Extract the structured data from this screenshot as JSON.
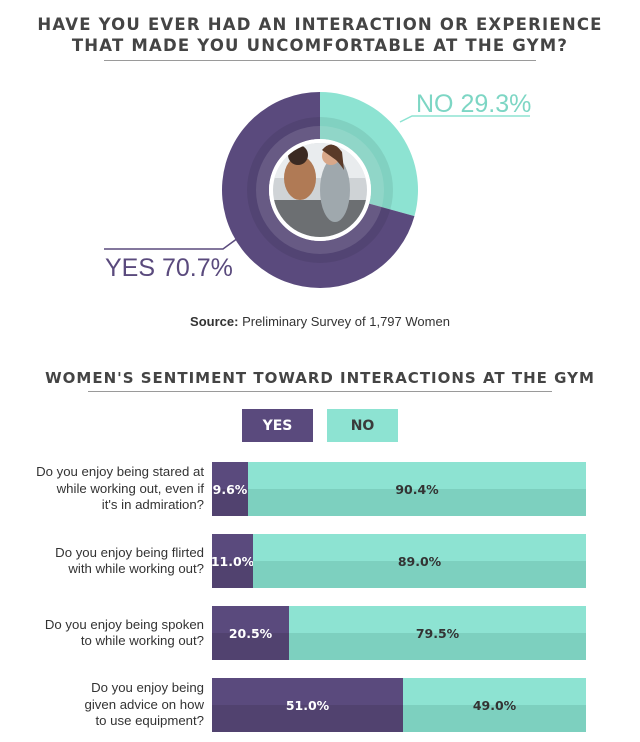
{
  "title": {
    "line1": "HAVE YOU EVER HAD AN INTERACTION OR EXPERIENCE",
    "line2": "THAT MADE YOU UNCOMFORTABLE AT THE GYM?"
  },
  "source": {
    "label": "Source:",
    "text": "Preliminary Survey of 1,797 Women"
  },
  "section2_title": "WOMEN'S SENTIMENT TOWARD INTERACTIONS AT THE GYM",
  "legend": {
    "yes": "YES",
    "no": "NO"
  },
  "colors": {
    "yes": "#5a4a7d",
    "no": "#8de3d2",
    "yes_dark": "#51426f",
    "no_dark": "#7dd0bf"
  },
  "chart_data": [
    {
      "type": "pie",
      "title": "HAVE YOU EVER HAD AN INTERACTION OR EXPERIENCE THAT MADE YOU UNCOMFORTABLE AT THE GYM?",
      "slices": [
        {
          "label": "YES",
          "value": 70.7,
          "display": "YES 70.7%"
        },
        {
          "label": "NO",
          "value": 29.3,
          "display": "NO 29.3%"
        }
      ]
    },
    {
      "type": "bar",
      "title": "WOMEN'S SENTIMENT TOWARD INTERACTIONS AT THE GYM",
      "stacked": true,
      "orientation": "horizontal",
      "legend": [
        "YES",
        "NO"
      ],
      "rows": [
        {
          "question": [
            "Do you enjoy being stared at",
            "while working out, even if",
            "it's in admiration?"
          ],
          "yes": 9.6,
          "no": 90.4,
          "yes_label": "9.6%",
          "no_label": "90.4%"
        },
        {
          "question": [
            "Do you enjoy being flirted",
            "with while working out?"
          ],
          "yes": 11.0,
          "no": 89.0,
          "yes_label": "11.0%",
          "no_label": "89.0%"
        },
        {
          "question": [
            "Do you enjoy being spoken",
            "to while working out?"
          ],
          "yes": 20.5,
          "no": 79.5,
          "yes_label": "20.5%",
          "no_label": "79.5%"
        },
        {
          "question": [
            "Do you enjoy being",
            "given advice on how",
            "to use equipment?"
          ],
          "yes": 51.0,
          "no": 49.0,
          "yes_label": "51.0%",
          "no_label": "49.0%"
        }
      ]
    }
  ]
}
